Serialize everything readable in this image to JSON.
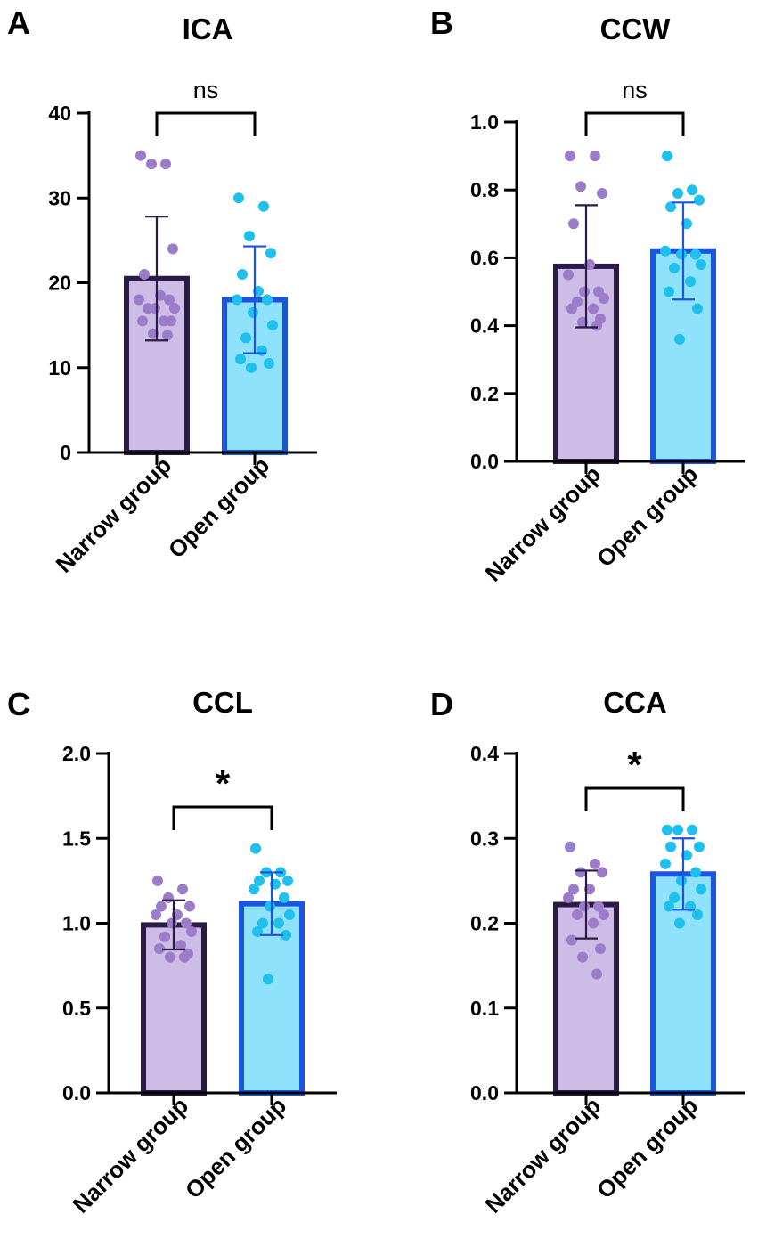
{
  "figure": {
    "colors": {
      "narrow_fill": "#cdbde6",
      "narrow_stroke": "#2a1a45",
      "narrow_dot": "#9a7cc8",
      "open_fill": "#8ee2fb",
      "open_stroke": "#1a56dd",
      "open_dot": "#1fc0ee",
      "axis": "#000000"
    }
  },
  "chart_data": [
    {
      "panel": "A",
      "type": "bar",
      "title": "ICA",
      "categories": [
        "Narrow group",
        "Open group"
      ],
      "means": [
        20.5,
        18.0
      ],
      "sd": [
        7.3,
        6.3
      ],
      "points": [
        [
          35,
          34,
          34,
          24,
          21,
          18.5,
          18,
          18,
          17,
          17,
          17,
          15.5,
          15.5,
          15.5,
          14,
          13.8
        ],
        [
          30,
          29,
          25.5,
          23.5,
          21,
          19,
          18,
          18,
          16.5,
          15,
          13.5,
          12,
          11,
          10.5,
          10
        ]
      ],
      "ylim": [
        0,
        40
      ],
      "yticks": [
        0,
        10,
        20,
        30,
        40
      ],
      "significance": "ns",
      "xlabel": "",
      "ylabel": ""
    },
    {
      "panel": "B",
      "type": "bar",
      "title": "CCW",
      "categories": [
        "Narrow group",
        "Open group"
      ],
      "means": [
        0.575,
        0.62
      ],
      "sd": [
        0.18,
        0.143
      ],
      "points": [
        [
          0.9,
          0.9,
          0.81,
          0.79,
          0.7,
          0.58,
          0.55,
          0.5,
          0.5,
          0.48,
          0.47,
          0.45,
          0.45,
          0.42,
          0.41,
          0.4
        ],
        [
          0.9,
          0.8,
          0.79,
          0.77,
          0.75,
          0.7,
          0.62,
          0.61,
          0.61,
          0.58,
          0.57,
          0.53,
          0.5,
          0.45,
          0.36
        ]
      ],
      "ylim": [
        0,
        1.0
      ],
      "yticks": [
        0.0,
        0.2,
        0.4,
        0.6,
        0.8,
        1.0
      ],
      "significance": "ns",
      "xlabel": "",
      "ylabel": ""
    },
    {
      "panel": "C",
      "type": "bar",
      "title": "CCL",
      "categories": [
        "Narrow group",
        "Open group"
      ],
      "means": [
        0.99,
        1.115
      ],
      "sd": [
        0.145,
        0.185
      ],
      "points": [
        [
          1.25,
          1.2,
          1.15,
          1.1,
          1.1,
          1.05,
          1.05,
          1.0,
          1.0,
          0.95,
          0.92,
          0.87,
          0.85,
          0.82,
          0.8,
          0.8
        ],
        [
          1.44,
          1.3,
          1.3,
          1.25,
          1.25,
          1.23,
          1.2,
          1.15,
          1.1,
          1.05,
          1.0,
          1.0,
          0.95,
          0.93,
          0.67
        ]
      ],
      "ylim": [
        0,
        2.0
      ],
      "yticks": [
        0.0,
        0.5,
        1.0,
        1.5,
        2.0
      ],
      "significance": "*",
      "xlabel": "",
      "ylabel": ""
    },
    {
      "panel": "D",
      "type": "bar",
      "title": "CCA",
      "categories": [
        "Narrow group",
        "Open group"
      ],
      "means": [
        0.222,
        0.258
      ],
      "sd": [
        0.04,
        0.042
      ],
      "points": [
        [
          0.29,
          0.27,
          0.26,
          0.26,
          0.24,
          0.24,
          0.23,
          0.22,
          0.22,
          0.21,
          0.21,
          0.2,
          0.18,
          0.17,
          0.16,
          0.14
        ],
        [
          0.31,
          0.31,
          0.31,
          0.29,
          0.29,
          0.28,
          0.27,
          0.26,
          0.25,
          0.24,
          0.23,
          0.22,
          0.22,
          0.21,
          0.2
        ]
      ],
      "ylim": [
        0,
        0.4
      ],
      "yticks": [
        0.0,
        0.1,
        0.2,
        0.3,
        0.4
      ],
      "significance": "*",
      "xlabel": "",
      "ylabel": ""
    }
  ]
}
